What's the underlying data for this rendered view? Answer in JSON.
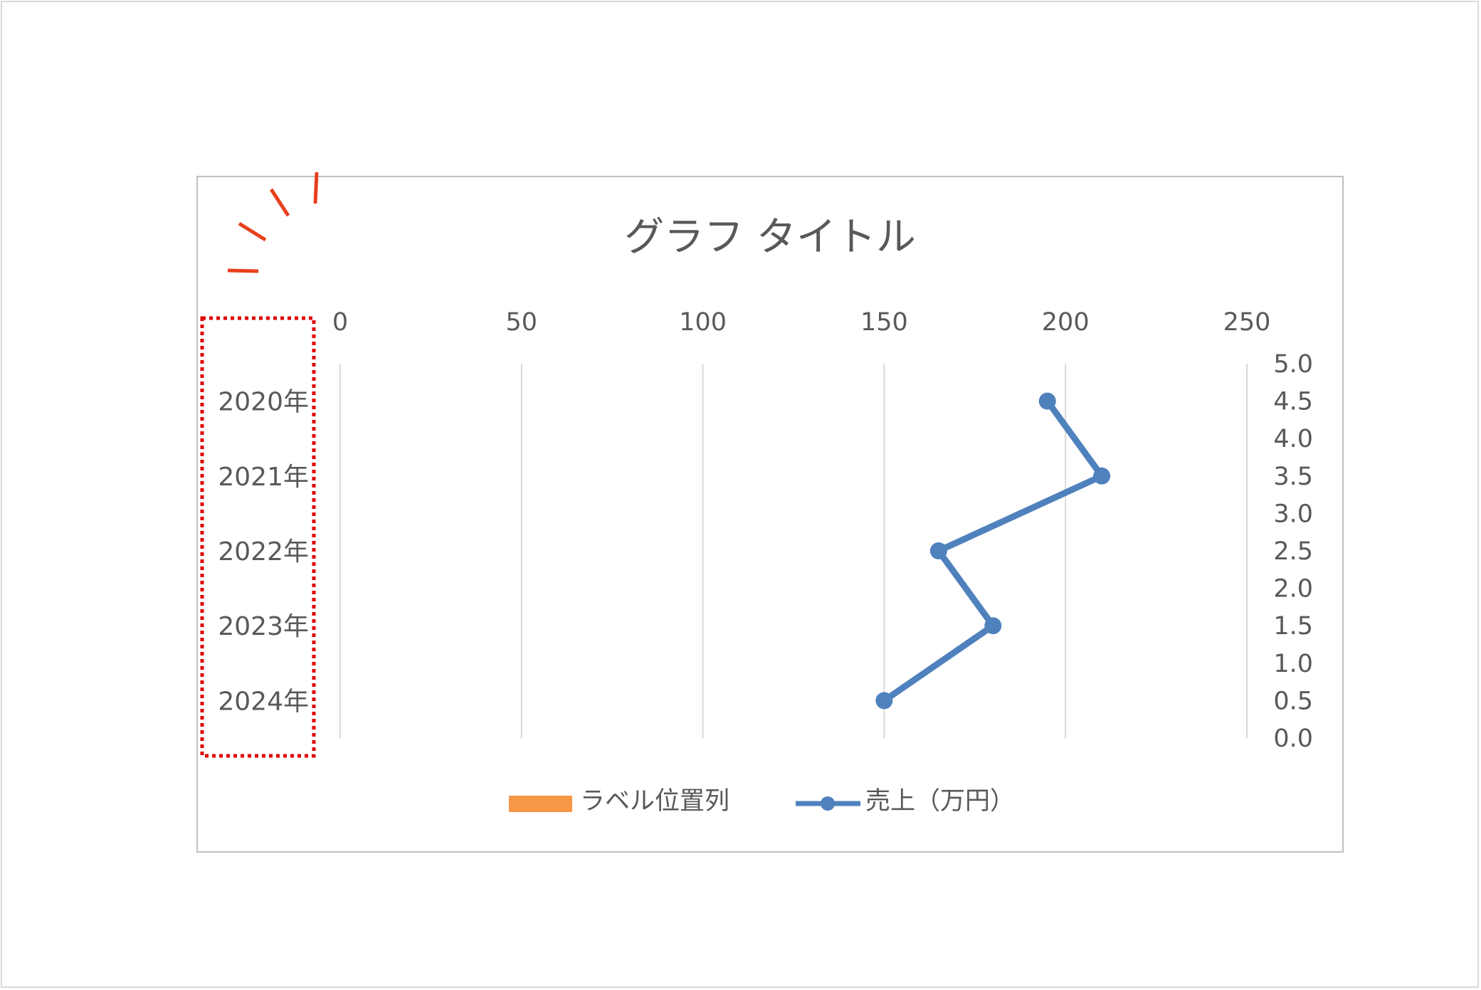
{
  "colors": {
    "label_series": "#f79646",
    "sales_series": "#4f81bd",
    "callout_red": "#e8401c",
    "highlight_box": "#e00000",
    "gridline": "#d9d9d9",
    "text": "#595959",
    "frame": "#bfbfbf"
  },
  "chart_data": {
    "type": "scatter",
    "title": "グラフ タイトル",
    "categories": [
      "2020年",
      "2021年",
      "2022年",
      "2023年",
      "2024年"
    ],
    "x_axis": {
      "position": "top",
      "range": [
        0,
        250
      ],
      "ticks": [
        "0",
        "50",
        "100",
        "150",
        "200",
        "250"
      ],
      "gridlines": true
    },
    "y_axis": {
      "position": "right",
      "range": [
        0,
        5
      ],
      "ticks": [
        "0.0",
        "0.5",
        "1.0",
        "1.5",
        "2.0",
        "2.5",
        "3.0",
        "3.5",
        "4.0",
        "4.5",
        "5.0"
      ]
    },
    "series": [
      {
        "name": "ラベル位置列",
        "kind": "bar",
        "color": "#f79646",
        "values": [
          0,
          0,
          0,
          0,
          0
        ]
      },
      {
        "name": "売上（万円）",
        "kind": "line-markers",
        "color": "#4f81bd",
        "points": [
          {
            "x": 195,
            "y": 4.5
          },
          {
            "x": 210,
            "y": 3.5
          },
          {
            "x": 165,
            "y": 2.5
          },
          {
            "x": 180,
            "y": 1.5
          },
          {
            "x": 150,
            "y": 0.5
          }
        ]
      }
    ],
    "legend": {
      "position": "bottom"
    }
  }
}
